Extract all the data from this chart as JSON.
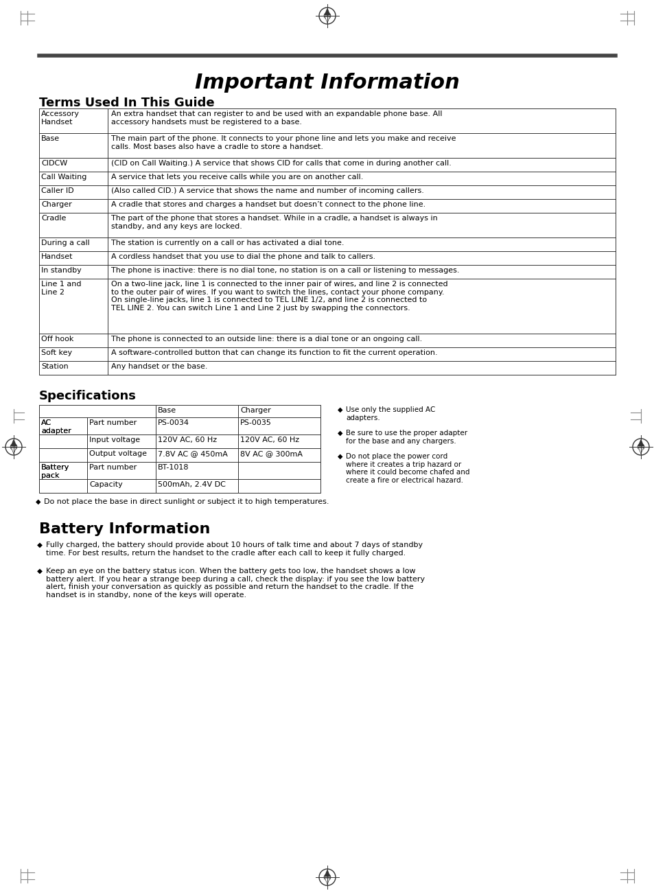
{
  "title": "Important Information",
  "section1": "Terms Used In This Guide",
  "section2": "Specifications",
  "section3": "Battery Information",
  "terms_table": [
    [
      "Accessory\nHandset",
      "An extra handset that can register to and be used with an expandable phone base. All\naccessory handsets must be registered to a base."
    ],
    [
      "Base",
      "The main part of the phone. It connects to your phone line and lets you make and receive\ncalls. Most bases also have a cradle to store a handset."
    ],
    [
      "CIDCW",
      "(CID on Call Waiting.) A service that shows CID for calls that come in during another call."
    ],
    [
      "Call Waiting",
      "A service that lets you receive calls while you are on another call."
    ],
    [
      "Caller ID",
      "(Also called CID.) A service that shows the name and number of incoming callers."
    ],
    [
      "Charger",
      "A cradle that stores and charges a handset but doesn’t connect to the phone line."
    ],
    [
      "Cradle",
      "The part of the phone that stores a handset. While in a cradle, a handset is always in\nstandby, and any keys are locked."
    ],
    [
      "During a call",
      "The station is currently on a call or has activated a dial tone."
    ],
    [
      "Handset",
      "A cordless handset that you use to dial the phone and talk to callers."
    ],
    [
      "In standby",
      "The phone is inactive: there is no dial tone, no station is on a call or listening to messages."
    ],
    [
      "Line 1 and\nLine 2",
      "On a two-line jack, line 1 is connected to the inner pair of wires, and line 2 is connected\nto the outer pair of wires. If you want to switch the lines, contact your phone company.\nOn single-line jacks, line 1 is connected to TEL LINE 1/2, and line 2 is connected to\nTEL LINE 2. You can switch Line 1 and Line 2 just by swapping the connectors."
    ],
    [
      "Off hook",
      "The phone is connected to an outside line: there is a dial tone or an ongoing call."
    ],
    [
      "Soft key",
      "A software-controlled button that can change its function to fit the current operation."
    ],
    [
      "Station",
      "Any handset or the base."
    ]
  ],
  "spec_table_headers": [
    "",
    "Base",
    "Charger"
  ],
  "spec_table": [
    [
      "AC\nadapter",
      "Part number",
      "PS-0034",
      "PS-0035"
    ],
    [
      "AC\nadapter",
      "Input voltage",
      "120V AC, 60 Hz",
      "120V AC, 60 Hz"
    ],
    [
      "AC\nadapter",
      "Output voltage",
      "7.8V AC @ 450mA",
      "8V AC @ 300mA"
    ],
    [
      "Battery\npack",
      "Part number",
      "BT-1018",
      ""
    ],
    [
      "Battery\npack",
      "Capacity",
      "500mAh, 2.4V DC",
      ""
    ]
  ],
  "spec_notes": [
    "Use only the supplied AC\nadapters.",
    "Be sure to use the proper adapter\nfor the base and any chargers.",
    "Do not place the power cord\nwhere it creates a trip hazard or\nwhere it could become chafed and\ncreate a fire or electrical hazard."
  ],
  "spec_bottom_note": "Do not place the base in direct sunlight or subject it to high temperatures.",
  "battery_bullets": [
    "Fully charged, the battery should provide about 10 hours of talk time and about 7 days of standby\ntime. For best results, return the handset to the cradle after each call to keep it fully charged.",
    "Keep an eye on the battery status icon. When the battery gets too low, the handset shows a low\nbattery alert. If you hear a strange beep during a call, check the display: if you see the low battery\nalert, finish your conversation as quickly as possible and return the handset to the cradle. If the\nhandset is in standby, none of the keys will operate."
  ],
  "bg_color": "#ffffff",
  "text_color": "#000000",
  "line_color": "#555555",
  "header_line_color": "#444444"
}
